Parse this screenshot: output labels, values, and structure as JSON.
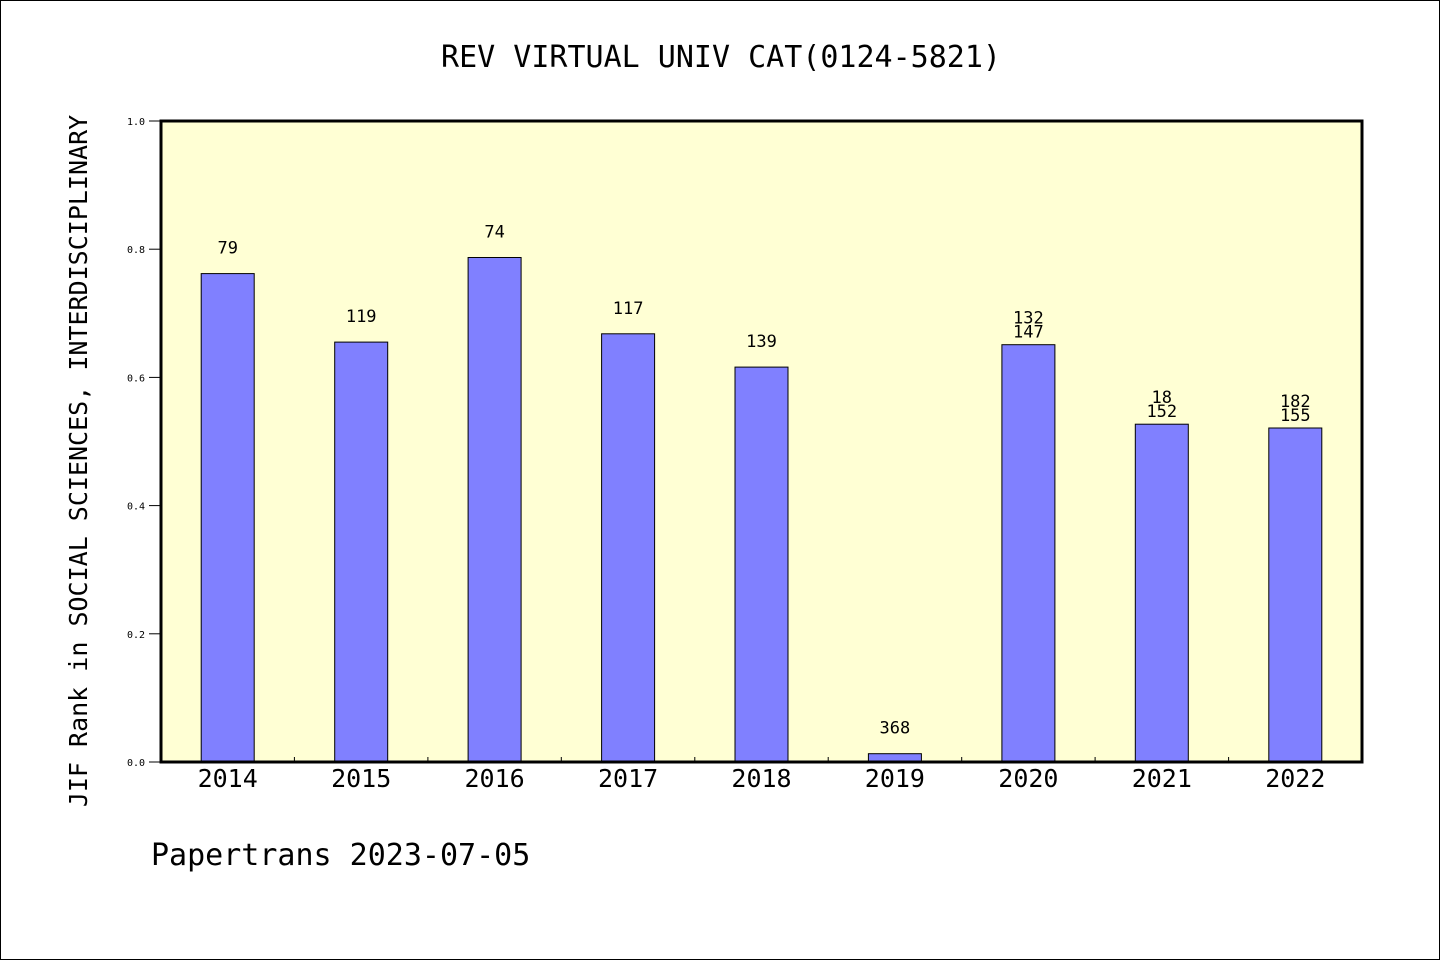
{
  "chart_data": {
    "type": "bar",
    "title": "REV VIRTUAL UNIV CAT(0124-5821)",
    "ylabel": "JIF Rank in SOCIAL SCIENCES, INTERDISCIPLINARY",
    "xlabel": "",
    "ylim": [
      0,
      1.0
    ],
    "yticks": [
      "0.0",
      "0.2",
      "0.4",
      "0.6",
      "0.8",
      "1.0"
    ],
    "categories": [
      "2014",
      "2015",
      "2016",
      "2017",
      "2018",
      "2019",
      "2020",
      "2021",
      "2022"
    ],
    "values": [
      0.762,
      0.655,
      0.787,
      0.668,
      0.616,
      0.013,
      0.651,
      0.527,
      0.521
    ],
    "bar_labels": [
      [
        "79"
      ],
      [
        "119"
      ],
      [
        "74"
      ],
      [
        "117"
      ],
      [
        "139"
      ],
      [
        "368"
      ],
      [
        "132",
        "147"
      ],
      [
        "18",
        "152"
      ],
      [
        "182",
        "155"
      ]
    ],
    "grid": false,
    "colors": {
      "bar": "#8080ff",
      "plot_background": "#ffffd4",
      "axis": "#000000"
    }
  },
  "footer": "Papertrans 2023-07-05"
}
